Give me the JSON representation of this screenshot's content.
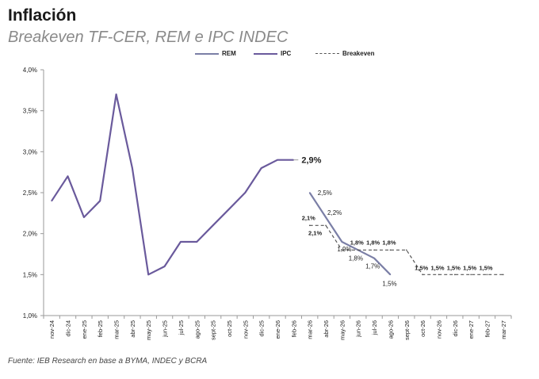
{
  "header": {
    "title": "Inflación",
    "subtitle": "Breakeven TF-CER, REM e IPC INDEC"
  },
  "footer": {
    "source": "Fuente: IEB Research en base a BYMA, INDEC y BCRA"
  },
  "colors": {
    "ipc": "#6a5a9c",
    "rem": "#7b7fa6",
    "breakeven": "#555555",
    "axis": "#9a9a9a",
    "text": "#222222"
  },
  "chart_data": {
    "type": "line",
    "title": "Breakeven TF-CER, REM e IPC INDEC",
    "xlabel": "",
    "ylabel": "",
    "ylim": [
      1.0,
      4.0
    ],
    "y_ticks": [
      "1,0%",
      "1,5%",
      "2,0%",
      "2,5%",
      "3,0%",
      "3,5%",
      "4,0%"
    ],
    "y_tick_values": [
      1.0,
      1.5,
      2.0,
      2.5,
      3.0,
      3.5,
      4.0
    ],
    "categories": [
      "nov-24",
      "dic-24",
      "ene-25",
      "feb-25",
      "mar-25",
      "abr-25",
      "may-25",
      "jun-25",
      "jul-25",
      "ago-25",
      "sept-25",
      "oct-25",
      "nov-25",
      "dic-25",
      "ene-26",
      "feb-26",
      "mar-26",
      "abr-26",
      "may-26",
      "jun-26",
      "jul-26",
      "ago-26",
      "sept-26",
      "oct-26",
      "nov-26",
      "dic-26",
      "ene-27",
      "feb-27",
      "mar-27"
    ],
    "legend": [
      "REM",
      "IPC",
      "Breakeven"
    ],
    "legend_position": "top",
    "series": [
      {
        "name": "IPC",
        "style": "solid",
        "values": [
          2.4,
          2.7,
          2.2,
          2.4,
          3.7,
          2.8,
          1.5,
          1.6,
          1.9,
          1.9,
          2.1,
          2.3,
          2.5,
          2.8,
          2.9,
          2.9,
          null,
          null,
          null,
          null,
          null,
          null,
          null,
          null,
          null,
          null,
          null,
          null,
          null
        ]
      },
      {
        "name": "REM",
        "style": "solid",
        "values": [
          null,
          null,
          null,
          null,
          null,
          null,
          null,
          null,
          null,
          null,
          null,
          null,
          null,
          null,
          null,
          null,
          2.5,
          2.2,
          1.9,
          1.8,
          1.7,
          1.5,
          null,
          null,
          null,
          null,
          null,
          null,
          null
        ]
      },
      {
        "name": "Breakeven",
        "style": "dashed",
        "values": [
          null,
          null,
          null,
          null,
          null,
          null,
          null,
          null,
          null,
          null,
          null,
          null,
          null,
          null,
          null,
          null,
          2.1,
          2.1,
          1.8,
          1.8,
          1.8,
          1.8,
          1.8,
          1.5,
          1.5,
          1.5,
          1.5,
          1.5,
          1.5
        ]
      }
    ],
    "annotations": [
      {
        "series": "IPC",
        "index": 15,
        "text": "2,9%"
      },
      {
        "series": "REM",
        "index": 16,
        "text": "2,5%"
      },
      {
        "series": "REM",
        "index": 17,
        "text": "2,2%"
      },
      {
        "series": "REM",
        "index": 18,
        "text": "1,9%"
      },
      {
        "series": "REM",
        "index": 19,
        "text": "1,8%"
      },
      {
        "series": "REM",
        "index": 20,
        "text": "1,7%"
      },
      {
        "series": "REM",
        "index": 21,
        "text": "1,5%"
      },
      {
        "series": "Breakeven",
        "index": 16,
        "text": "2,1%"
      },
      {
        "series": "Breakeven",
        "index": 17,
        "text": "2,1%"
      },
      {
        "series": "Breakeven",
        "index": 19,
        "text": "1,8%"
      },
      {
        "series": "Breakeven",
        "index": 20,
        "text": "1,8%"
      },
      {
        "series": "Breakeven",
        "index": 21,
        "text": "1,8%"
      },
      {
        "series": "Breakeven",
        "index": 23,
        "text": "1,5%"
      },
      {
        "series": "Breakeven",
        "index": 24,
        "text": "1,5%"
      },
      {
        "series": "Breakeven",
        "index": 25,
        "text": "1,5%"
      },
      {
        "series": "Breakeven",
        "index": 26,
        "text": "1,5%"
      },
      {
        "series": "Breakeven",
        "index": 27,
        "text": "1,5%"
      }
    ]
  }
}
